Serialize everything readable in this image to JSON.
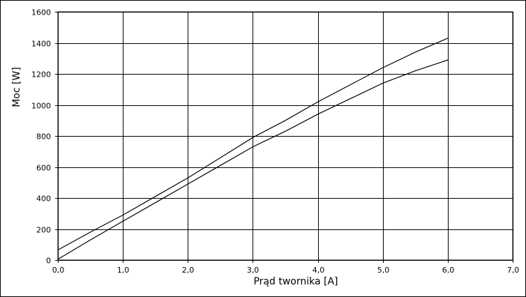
{
  "chart_data": {
    "type": "line",
    "xlabel": "Prąd twornika [A]",
    "ylabel": "Moc [W]",
    "xlim": [
      0,
      7
    ],
    "ylim": [
      0,
      1600
    ],
    "x_ticks": [
      "0,0",
      "1,0",
      "2,0",
      "3,0",
      "4,0",
      "5,0",
      "6,0",
      "7,0"
    ],
    "y_ticks": [
      "0",
      "200",
      "400",
      "600",
      "800",
      "1000",
      "1200",
      "1400",
      "1600"
    ],
    "grid": true,
    "series": [
      {
        "x": [
          0,
          0.5,
          1,
          1.5,
          2,
          2.5,
          3,
          3.5,
          4,
          4.5,
          5,
          5.5,
          6
        ],
        "values": [
          65,
          180,
          290,
          410,
          530,
          660,
          790,
          900,
          1020,
          1130,
          1240,
          1340,
          1430
        ]
      },
      {
        "x": [
          0,
          0.5,
          1,
          1.5,
          2,
          2.5,
          3,
          3.5,
          4,
          4.5,
          5,
          5.5,
          6
        ],
        "values": [
          5,
          130,
          250,
          370,
          490,
          610,
          730,
          830,
          940,
          1040,
          1140,
          1220,
          1290
        ]
      }
    ]
  }
}
